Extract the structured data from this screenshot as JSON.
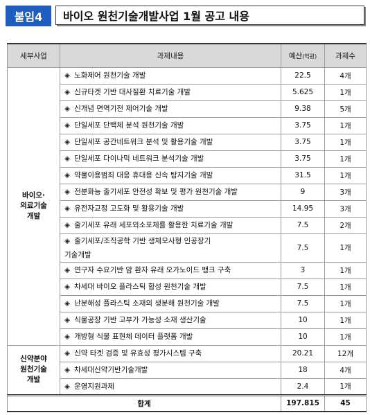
{
  "header": {
    "badge": "붙임4",
    "title": "바이오 원천기술개발사업 1월 공고 내용"
  },
  "table": {
    "columns": {
      "program": "세부사업",
      "task": "과제내용",
      "budget": "예산",
      "budget_unit": "(억원)",
      "count": "과제수"
    },
    "bullet": "◈",
    "groups": [
      {
        "label": [
          "바이오·",
          "의료기술",
          "개발"
        ],
        "rows": [
          {
            "task": [
              "노화제어 원천기술 개발"
            ],
            "budget": 22.5,
            "count": "4개"
          },
          {
            "task": [
              "신규타겟 기반 대사질환 치료기술 개발"
            ],
            "budget": 5.625,
            "count": "1개"
          },
          {
            "task": [
              "신개념 면역기전 제어기술 개발"
            ],
            "budget": 9.38,
            "count": "5개"
          },
          {
            "task": [
              "단일세포 단백체 분석 원천기술 개발"
            ],
            "budget": 3.75,
            "count": "1개"
          },
          {
            "task": [
              "단일세포 공간네트워크 분석 및 활용기술 개발"
            ],
            "budget": 3.75,
            "count": "1개"
          },
          {
            "task": [
              "단일세포 다이나믹 네트워크 분석기술 개발"
            ],
            "budget": 3.75,
            "count": "1개"
          },
          {
            "task": [
              "약물이용범죄 대응 휴대용 신속 탐지기술 개발"
            ],
            "budget": 31.5,
            "count": "1개"
          },
          {
            "task": [
              "전분화능 줄기세포 안전성 확보 및 평가 원천기술 개발"
            ],
            "budget": 9,
            "count": "3개"
          },
          {
            "task": [
              "유전자교정 고도화 및 활용기술 개발"
            ],
            "budget": 14.95,
            "count": "3개"
          },
          {
            "task": [
              "줄기세포 유래 세포외소포체를 활용한 치료기술 개발"
            ],
            "budget": 7.5,
            "count": "2개"
          },
          {
            "task": [
              "줄기세포/조직공학 기반 생체모사형 인공장기",
              "기술개발"
            ],
            "budget": 7.5,
            "count": "1개"
          },
          {
            "task": [
              "연구자 수요기반 암 환자 유래 오가노이드 뱅크 구축"
            ],
            "budget": 3,
            "count": "1개"
          },
          {
            "task": [
              "차세대 바이오 플라스틱 합성 원천기술 개발"
            ],
            "budget": 7.5,
            "count": "1개"
          },
          {
            "task": [
              "난분해성 플라스틱 소재의 생분해 원천기술 개발"
            ],
            "budget": 7.5,
            "count": "1개"
          },
          {
            "task": [
              "식물공장 기반 고부가 가능성 소재 생산기술"
            ],
            "budget": 10,
            "count": "1개"
          },
          {
            "task": [
              "개방형 식물 표현체 데이터 플랫폼 개발"
            ],
            "budget": 10,
            "count": "1개"
          }
        ]
      },
      {
        "label": [
          "신약분야",
          "원천기술",
          "개발"
        ],
        "rows": [
          {
            "task": [
              "신약 타겟 검증 및 유효성 평가시스템 구축"
            ],
            "budget": 20.21,
            "count": "12개"
          },
          {
            "task": [
              "차세대신약기반기술개발"
            ],
            "budget": 18,
            "count": "4개"
          },
          {
            "task": [
              "운영지원과제"
            ],
            "budget": 2.4,
            "count": "1개"
          }
        ]
      }
    ],
    "total": {
      "label": "합계",
      "budget": 197.815,
      "count": 45
    }
  }
}
